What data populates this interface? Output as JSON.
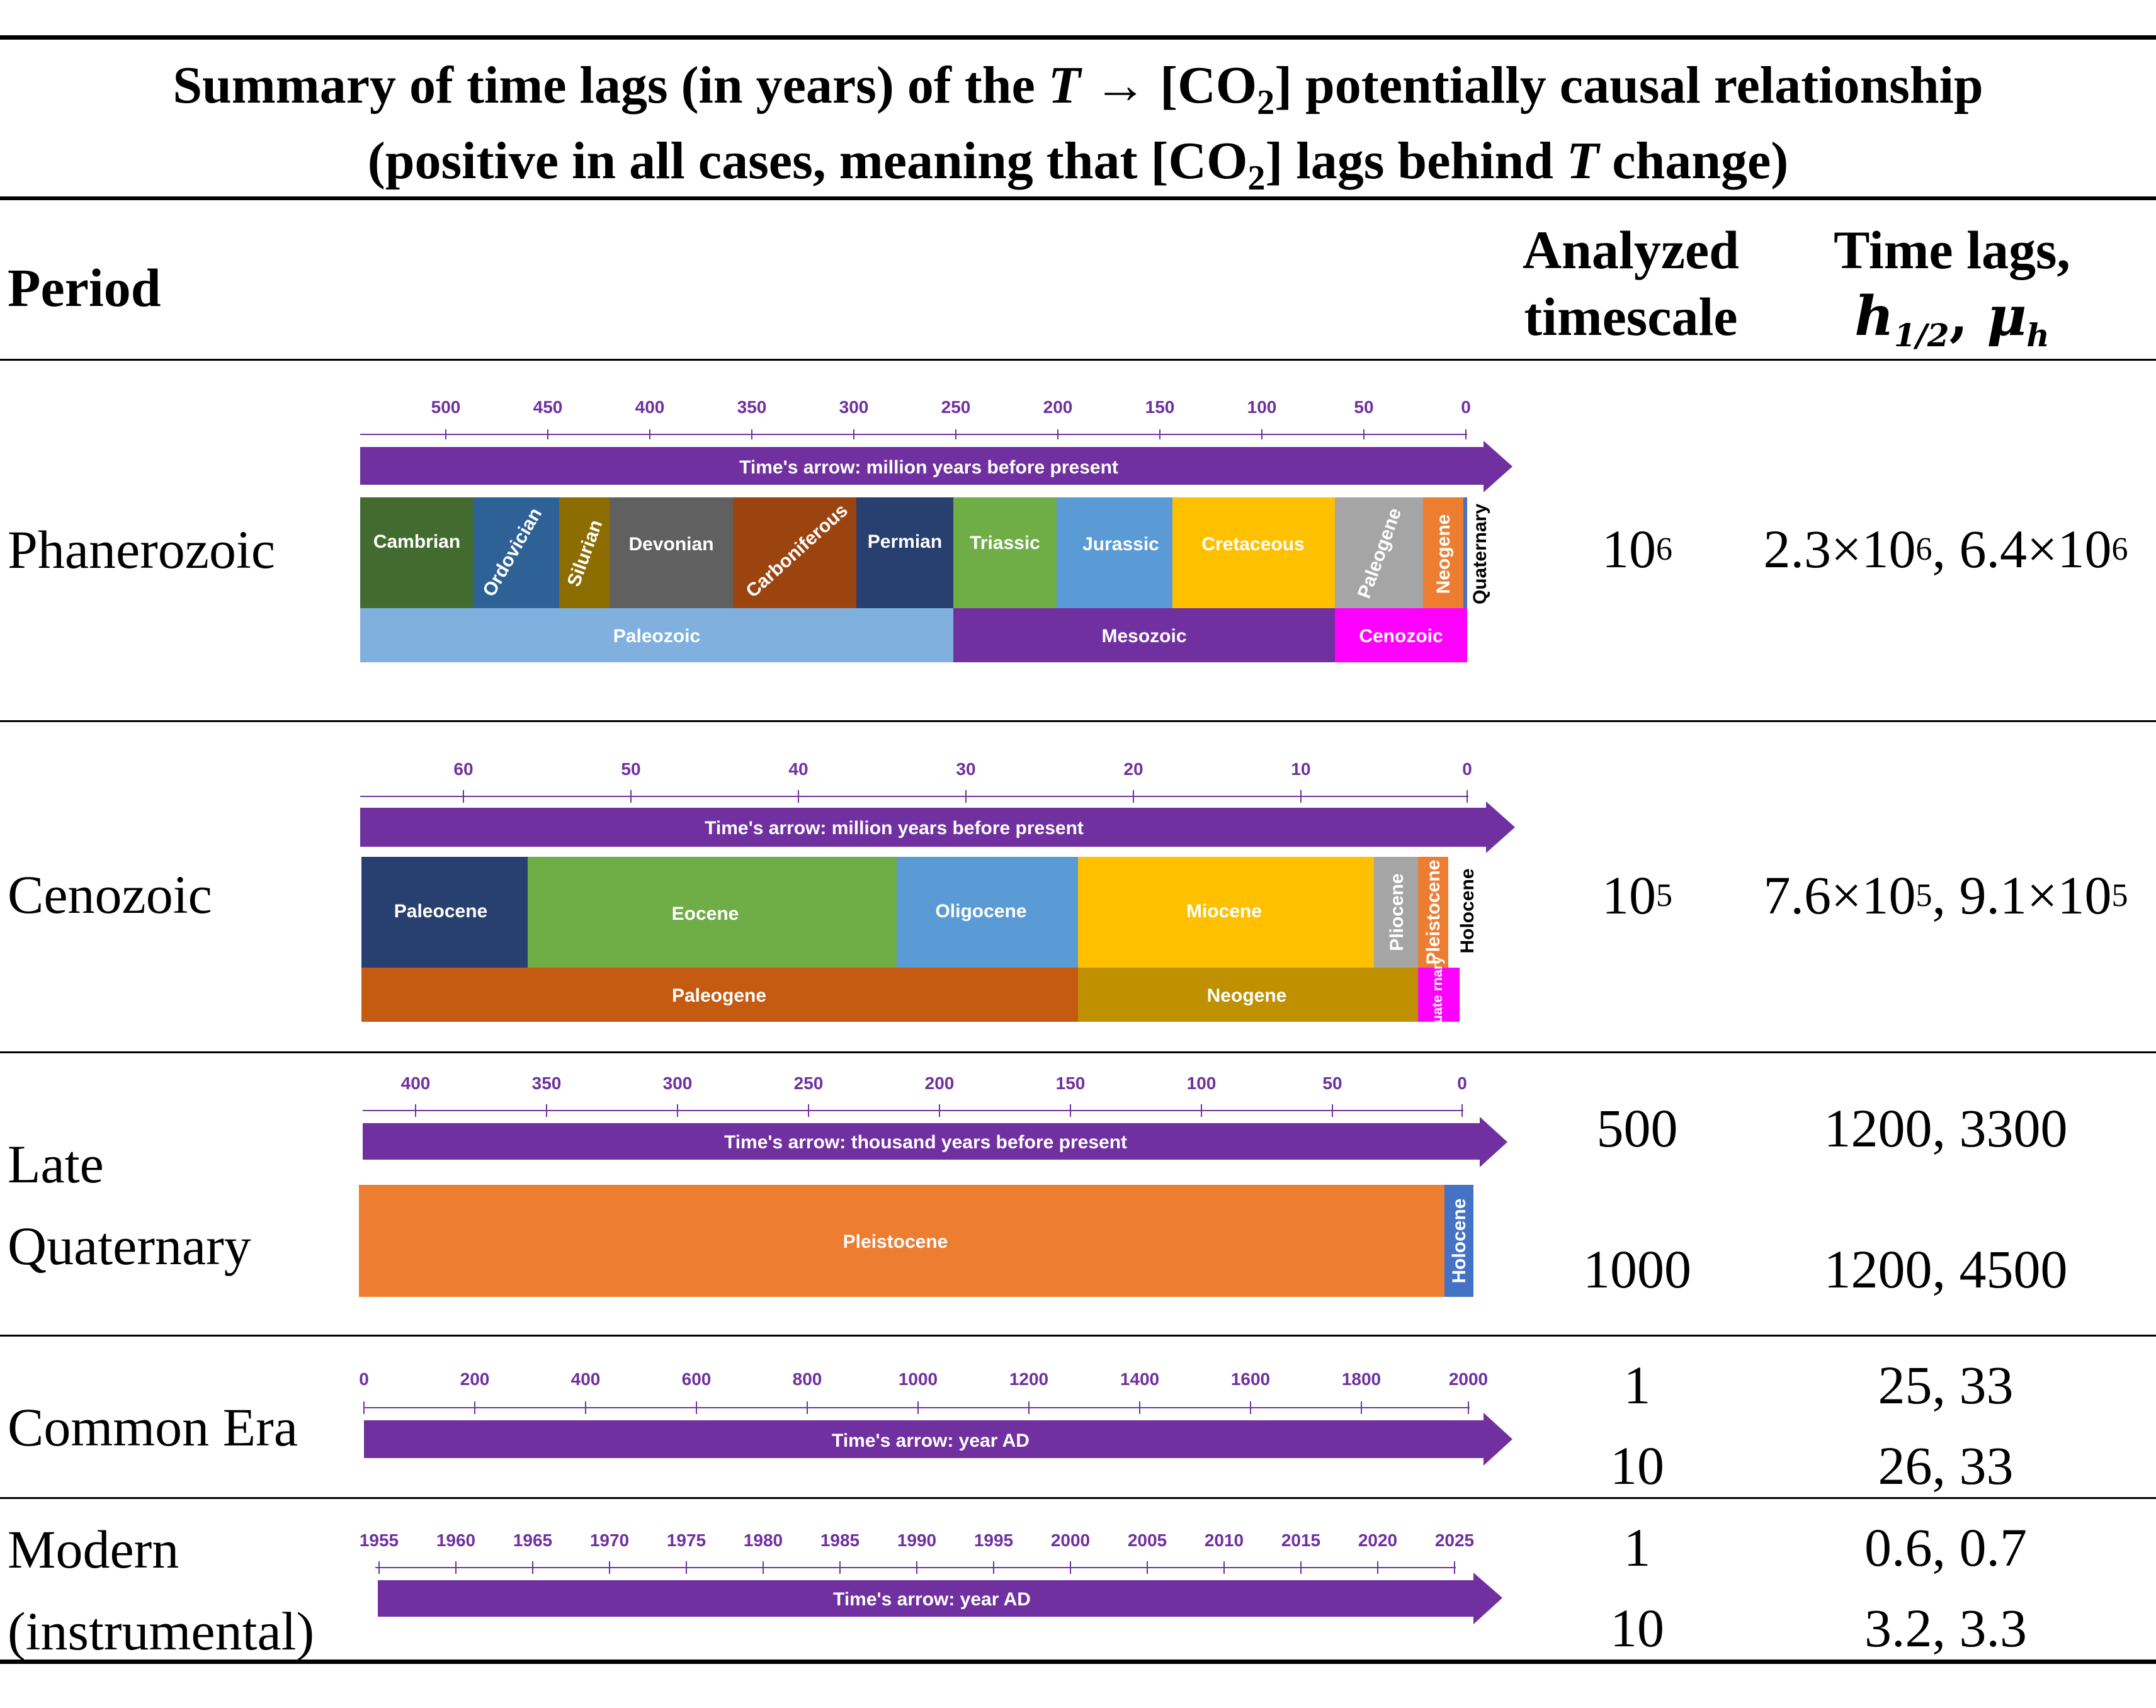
{
  "title": {
    "line1_a": "Summary of time lags (in years) of the ",
    "line1_T": "T",
    "line1_b": " → [CO",
    "line1_sub": "2",
    "line1_c": "] potentially causal relationship",
    "line2_a": "(positive in all cases, meaning that [CO",
    "line2_sub": "2",
    "line2_b": "] lags behind ",
    "line2_T": "T",
    "line2_c": " change)"
  },
  "header": {
    "period": "Period",
    "timescale_line1": "Analyzed",
    "timescale_line2": "timescale",
    "lags_line1": "Time lags,",
    "lags_h": "h",
    "lags_h_sub": "1/2",
    "lags_comma": ", ",
    "lags_mu": "μ",
    "lags_mu_sub": "h"
  },
  "rows": {
    "phanerozoic": {
      "label": "Phanerozoic",
      "timescale_base": "10",
      "timescale_exp": "6",
      "lag1_base": "2.3×10",
      "lag1_exp": "6",
      "sep": ", ",
      "lag2_base": "6.4×10",
      "lag2_exp": "6",
      "ticks": [
        "500",
        "450",
        "400",
        "350",
        "300",
        "250",
        "200",
        "150",
        "100",
        "50",
        "0"
      ],
      "arrow": "Time's arrow: million years before present",
      "periods": [
        "Cambrian",
        "Ordovician",
        "Silurian",
        "Devonian",
        "Carboniferous",
        "Permian",
        "Triassic",
        "Jurassic",
        "Cretaceous",
        "Paleogene",
        "Neogene",
        "Quaternary"
      ],
      "eras": [
        "Paleozoic",
        "Mesozoic",
        "Cenozoic"
      ]
    },
    "cenozoic": {
      "label": "Cenozoic",
      "timescale_base": "10",
      "timescale_exp": "5",
      "lag1_base": "7.6×10",
      "lag1_exp": "5",
      "sep": ", ",
      "lag2_base": "9.1×10",
      "lag2_exp": "5",
      "ticks": [
        "60",
        "50",
        "40",
        "30",
        "20",
        "10",
        "0"
      ],
      "arrow": "Time's arrow: million years before present",
      "epochs": [
        "Paleocene",
        "Eocene",
        "Oligocene",
        "Miocene",
        "Pliocene",
        "Pleistocene",
        "Holocene"
      ],
      "periods": [
        "Paleogene",
        "Neogene",
        "Quate rnary"
      ]
    },
    "late_quaternary": {
      "label_line1": "Late",
      "label_line2": "Quaternary",
      "timescales": [
        "500",
        "1000"
      ],
      "lags": [
        "1200, 3300",
        "1200, 4500"
      ],
      "ticks": [
        "400",
        "350",
        "300",
        "250",
        "200",
        "150",
        "100",
        "50",
        "0"
      ],
      "arrow": "Time's arrow: thousand years before present",
      "epochs": [
        "Pleistocene",
        "Holocene"
      ]
    },
    "common_era": {
      "label": "Common Era",
      "timescales": [
        "1",
        "10"
      ],
      "lags": [
        "25, 33",
        "26, 33"
      ],
      "ticks": [
        "0",
        "200",
        "400",
        "600",
        "800",
        "1000",
        "1200",
        "1400",
        "1600",
        "1800",
        "2000"
      ],
      "arrow": "Time's arrow: year AD"
    },
    "modern": {
      "label_line1": "Modern",
      "label_line2": "(instrumental)",
      "timescales": [
        "1",
        "10"
      ],
      "lags": [
        "0.6, 0.7",
        "3.2, 3.3"
      ],
      "ticks": [
        "1955",
        "1960",
        "1965",
        "1970",
        "1975",
        "1980",
        "1985",
        "1990",
        "1995",
        "2000",
        "2005",
        "2010",
        "2015",
        "2020",
        "2025"
      ],
      "arrow": "Time's arrow: year AD"
    }
  },
  "colors": {
    "purple": "#7030A0",
    "cambrian": "#436B30",
    "ordovician": "#2E6296",
    "silurian": "#8D6D00",
    "devonian": "#606060",
    "carboniferous": "#9C4410",
    "permian": "#27406F",
    "triassic": "#6FAD47",
    "jurassic": "#5B9BD5",
    "cretaceous": "#FFC000",
    "paleogene_gray": "#A5A5A5",
    "neogene_orange": "#ED7D31",
    "paleozoic": "#7FB0DE",
    "mesozoic": "#7030A0",
    "cenozoic": "#FF00FF",
    "paleogene_brown": "#C55A11",
    "neogene_gold": "#BF9000",
    "holocene_blue": "#4472C4"
  }
}
